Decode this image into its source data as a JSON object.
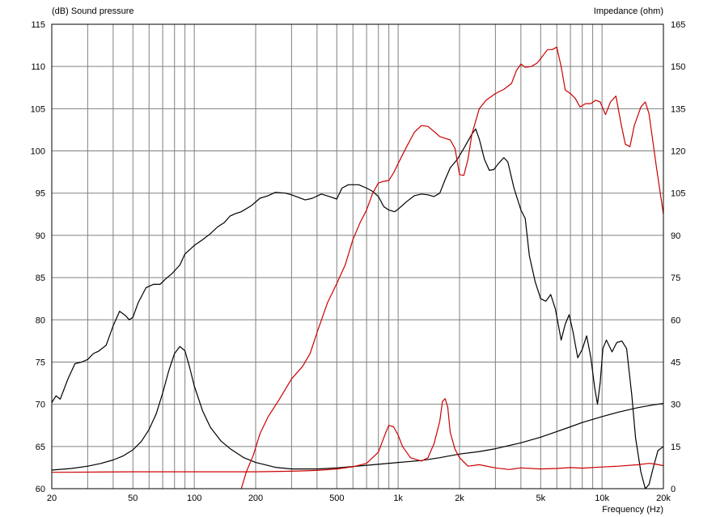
{
  "chart_data": {
    "type": "line",
    "x_scale": "log",
    "xlim": [
      20,
      20000
    ],
    "ylim_left": [
      60,
      115
    ],
    "ylim_right": [
      0,
      165
    ],
    "left_axis_label": "(dB)  Sound pressure",
    "right_axis_label": "Impedance  (ohm)",
    "x_axis_label": "Frequency  (Hz)",
    "x_tick_labels": [
      {
        "x": 20,
        "label": "20"
      },
      {
        "x": 50,
        "label": "50"
      },
      {
        "x": 100,
        "label": "100"
      },
      {
        "x": 200,
        "label": "200"
      },
      {
        "x": 500,
        "label": "500"
      },
      {
        "x": 1000,
        "label": "1k"
      },
      {
        "x": 2000,
        "label": "2k"
      },
      {
        "x": 5000,
        "label": "5k"
      },
      {
        "x": 10000,
        "label": "10k"
      },
      {
        "x": 20000,
        "label": "20k"
      }
    ],
    "y_left_ticks": [
      60,
      65,
      70,
      75,
      80,
      85,
      90,
      95,
      100,
      105,
      110,
      115
    ],
    "y_right_ticks": [
      0,
      15,
      30,
      45,
      60,
      75,
      90,
      105,
      120,
      135,
      150,
      165
    ],
    "grid": true,
    "series": [
      {
        "axis": "left",
        "color": "#000000",
        "points": [
          [
            20,
            70.2
          ],
          [
            21,
            71
          ],
          [
            22,
            70.6
          ],
          [
            24,
            73
          ],
          [
            26,
            74.8
          ],
          [
            28,
            75
          ],
          [
            30,
            75.3
          ],
          [
            32,
            76
          ],
          [
            34,
            76.3
          ],
          [
            37,
            77
          ],
          [
            40,
            79.3
          ],
          [
            43,
            81
          ],
          [
            46,
            80.5
          ],
          [
            48,
            80
          ],
          [
            50,
            80.3
          ],
          [
            53,
            82
          ],
          [
            58,
            83.8
          ],
          [
            63,
            84.2
          ],
          [
            68,
            84.2
          ],
          [
            72,
            84.8
          ],
          [
            78,
            85.5
          ],
          [
            85,
            86.5
          ],
          [
            90,
            87.8
          ],
          [
            100,
            88.8
          ],
          [
            110,
            89.5
          ],
          [
            120,
            90.2
          ],
          [
            130,
            91
          ],
          [
            140,
            91.5
          ],
          [
            150,
            92.3
          ],
          [
            160,
            92.6
          ],
          [
            170,
            92.8
          ],
          [
            190,
            93.5
          ],
          [
            210,
            94.4
          ],
          [
            230,
            94.7
          ],
          [
            250,
            95.1
          ],
          [
            280,
            95
          ],
          [
            300,
            94.8
          ],
          [
            350,
            94.2
          ],
          [
            380,
            94.4
          ],
          [
            420,
            94.9
          ],
          [
            460,
            94.6
          ],
          [
            500,
            94.3
          ],
          [
            530,
            95.6
          ],
          [
            570,
            96
          ],
          [
            640,
            96
          ],
          [
            700,
            95.6
          ],
          [
            750,
            95.2
          ],
          [
            800,
            94.6
          ],
          [
            850,
            93.4
          ],
          [
            900,
            93
          ],
          [
            960,
            92.8
          ],
          [
            1000,
            93.1
          ],
          [
            1100,
            94
          ],
          [
            1200,
            94.7
          ],
          [
            1300,
            94.9
          ],
          [
            1400,
            94.8
          ],
          [
            1500,
            94.6
          ],
          [
            1600,
            95
          ],
          [
            1700,
            96.6
          ],
          [
            1800,
            98
          ],
          [
            1950,
            99
          ],
          [
            2100,
            100.3
          ],
          [
            2300,
            102
          ],
          [
            2400,
            102.6
          ],
          [
            2500,
            101.4
          ],
          [
            2650,
            99
          ],
          [
            2800,
            97.7
          ],
          [
            2950,
            97.8
          ],
          [
            3100,
            98.5
          ],
          [
            3300,
            99.2
          ],
          [
            3450,
            98.7
          ],
          [
            3700,
            95.6
          ],
          [
            4000,
            93
          ],
          [
            4200,
            92
          ],
          [
            4400,
            87.6
          ],
          [
            4700,
            84.5
          ],
          [
            5000,
            82.5
          ],
          [
            5300,
            82.2
          ],
          [
            5600,
            83
          ],
          [
            5900,
            81.3
          ],
          [
            6300,
            77.6
          ],
          [
            6600,
            79.5
          ],
          [
            6900,
            80.6
          ],
          [
            7200,
            78.6
          ],
          [
            7600,
            75.5
          ],
          [
            8000,
            76.5
          ],
          [
            8400,
            78.1
          ],
          [
            8800,
            75.6
          ],
          [
            9200,
            72
          ],
          [
            9500,
            70
          ],
          [
            9800,
            72.6
          ],
          [
            10100,
            76.6
          ],
          [
            10500,
            77.6
          ],
          [
            11200,
            76.2
          ],
          [
            11800,
            77.3
          ],
          [
            12500,
            77.5
          ],
          [
            13200,
            76.6
          ],
          [
            14000,
            71
          ],
          [
            14600,
            66
          ],
          [
            15500,
            62
          ],
          [
            16300,
            60
          ],
          [
            17000,
            60.5
          ],
          [
            17800,
            62.4
          ],
          [
            18800,
            64.5
          ],
          [
            20000,
            65
          ]
        ]
      },
      {
        "axis": "right",
        "color": "#000000",
        "points": [
          [
            20,
            6.6
          ],
          [
            25,
            7.2
          ],
          [
            30,
            8
          ],
          [
            35,
            9
          ],
          [
            40,
            10.2
          ],
          [
            45,
            11.7
          ],
          [
            50,
            13.8
          ],
          [
            55,
            16.8
          ],
          [
            60,
            21
          ],
          [
            65,
            26.5
          ],
          [
            70,
            34
          ],
          [
            75,
            42
          ],
          [
            80,
            48
          ],
          [
            85,
            50.5
          ],
          [
            90,
            49
          ],
          [
            95,
            43
          ],
          [
            100,
            36.5
          ],
          [
            110,
            27.5
          ],
          [
            120,
            21.8
          ],
          [
            135,
            17
          ],
          [
            150,
            14.2
          ],
          [
            175,
            11
          ],
          [
            200,
            9.3
          ],
          [
            250,
            7.6
          ],
          [
            300,
            7
          ],
          [
            400,
            7
          ],
          [
            500,
            7.4
          ],
          [
            700,
            8.3
          ],
          [
            1000,
            9.3
          ],
          [
            1300,
            10
          ],
          [
            1600,
            11
          ],
          [
            2000,
            12.3
          ],
          [
            2500,
            13.2
          ],
          [
            3000,
            14.2
          ],
          [
            4000,
            16.3
          ],
          [
            5000,
            18.3
          ],
          [
            6000,
            20.3
          ],
          [
            7000,
            22
          ],
          [
            8000,
            23.5
          ],
          [
            10000,
            25.6
          ],
          [
            12000,
            27.2
          ],
          [
            15000,
            28.8
          ],
          [
            18000,
            29.8
          ],
          [
            20000,
            30.3
          ]
        ]
      },
      {
        "axis": "left",
        "color": "#cc0000",
        "points": [
          [
            170,
            60
          ],
          [
            180,
            62
          ],
          [
            195,
            64
          ],
          [
            210,
            66.5
          ],
          [
            230,
            68.5
          ],
          [
            260,
            70.5
          ],
          [
            300,
            73
          ],
          [
            340,
            74.5
          ],
          [
            370,
            76
          ],
          [
            400,
            78.5
          ],
          [
            450,
            82
          ],
          [
            500,
            84.3
          ],
          [
            550,
            86.5
          ],
          [
            600,
            89.5
          ],
          [
            650,
            91.5
          ],
          [
            700,
            93
          ],
          [
            750,
            95
          ],
          [
            800,
            96.2
          ],
          [
            850,
            96.4
          ],
          [
            900,
            96.5
          ],
          [
            950,
            97.4
          ],
          [
            1000,
            98.5
          ],
          [
            1100,
            100.5
          ],
          [
            1200,
            102.2
          ],
          [
            1300,
            103
          ],
          [
            1400,
            102.9
          ],
          [
            1500,
            102.3
          ],
          [
            1600,
            101.7
          ],
          [
            1700,
            101.5
          ],
          [
            1800,
            101.3
          ],
          [
            1900,
            100.3
          ],
          [
            2000,
            97.2
          ],
          [
            2100,
            97.1
          ],
          [
            2200,
            99
          ],
          [
            2300,
            102
          ],
          [
            2500,
            105
          ],
          [
            2700,
            106
          ],
          [
            3000,
            106.8
          ],
          [
            3300,
            107.3
          ],
          [
            3600,
            108
          ],
          [
            3800,
            109.5
          ],
          [
            4000,
            110.3
          ],
          [
            4200,
            109.9
          ],
          [
            4500,
            110
          ],
          [
            4800,
            110.4
          ],
          [
            5100,
            111.2
          ],
          [
            5400,
            112
          ],
          [
            5700,
            112
          ],
          [
            6000,
            112.3
          ],
          [
            6300,
            110
          ],
          [
            6600,
            107.2
          ],
          [
            7000,
            106.8
          ],
          [
            7400,
            106.2
          ],
          [
            7800,
            105.2
          ],
          [
            8300,
            105.6
          ],
          [
            8800,
            105.6
          ],
          [
            9300,
            106
          ],
          [
            9800,
            105.8
          ],
          [
            10400,
            104.3
          ],
          [
            11000,
            105.8
          ],
          [
            11700,
            106.5
          ],
          [
            12400,
            103.2
          ],
          [
            13000,
            100.8
          ],
          [
            13700,
            100.5
          ],
          [
            14400,
            103
          ],
          [
            15500,
            105.2
          ],
          [
            16300,
            105.8
          ],
          [
            17000,
            104.4
          ],
          [
            18500,
            98
          ],
          [
            20000,
            92.5
          ]
        ]
      },
      {
        "axis": "right",
        "color": "#cc0000",
        "points": [
          [
            20,
            5.8
          ],
          [
            50,
            6
          ],
          [
            100,
            6
          ],
          [
            200,
            6
          ],
          [
            300,
            6.2
          ],
          [
            400,
            6.5
          ],
          [
            500,
            7
          ],
          [
            600,
            7.8
          ],
          [
            700,
            9
          ],
          [
            800,
            13
          ],
          [
            870,
            20
          ],
          [
            900,
            22.5
          ],
          [
            950,
            22
          ],
          [
            1000,
            19
          ],
          [
            1050,
            15
          ],
          [
            1150,
            11
          ],
          [
            1300,
            9.8
          ],
          [
            1400,
            11
          ],
          [
            1500,
            16
          ],
          [
            1600,
            24
          ],
          [
            1650,
            31
          ],
          [
            1700,
            32
          ],
          [
            1750,
            29
          ],
          [
            1800,
            20
          ],
          [
            1900,
            14
          ],
          [
            2000,
            11
          ],
          [
            2200,
            8
          ],
          [
            2500,
            8.5
          ],
          [
            3000,
            7.4
          ],
          [
            3500,
            6.8
          ],
          [
            4000,
            7.4
          ],
          [
            5000,
            7
          ],
          [
            6000,
            7.2
          ],
          [
            7000,
            7.5
          ],
          [
            8000,
            7.3
          ],
          [
            10000,
            7.7
          ],
          [
            12000,
            8
          ],
          [
            15000,
            8.5
          ],
          [
            17000,
            9
          ],
          [
            18000,
            8.8
          ],
          [
            20000,
            8.2
          ]
        ]
      }
    ]
  }
}
